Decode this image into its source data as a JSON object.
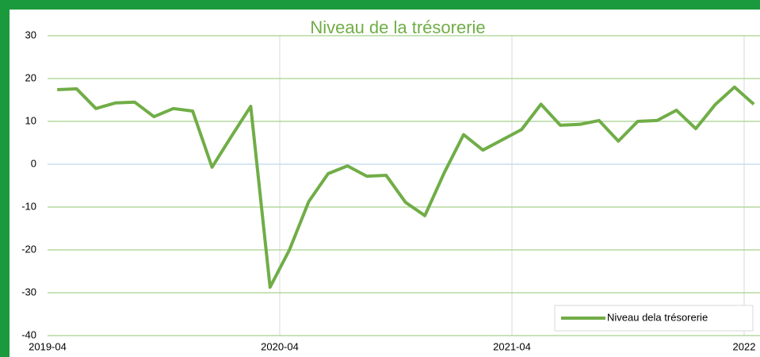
{
  "chart_data": {
    "type": "line",
    "title": "Niveau de la trésorerie",
    "categories": [
      "2019-04",
      null,
      null,
      null,
      null,
      null,
      null,
      null,
      null,
      null,
      null,
      null,
      "2020-04",
      null,
      null,
      null,
      null,
      null,
      null,
      null,
      null,
      null,
      null,
      null,
      "2021-04",
      null,
      null,
      null,
      null,
      null,
      null,
      null,
      null,
      null,
      null,
      null,
      "2022"
    ],
    "series": [
      {
        "name": "Niveau dela trésorerie",
        "color": "#70ad47",
        "values": [
          17.4,
          17.6,
          13,
          14.3,
          14.5,
          11.1,
          13,
          12.4,
          -0.7,
          6.5,
          13.5,
          -28.7,
          -20,
          -8.7,
          -2.2,
          -0.4,
          -2.8,
          -2.6,
          -8.9,
          -12,
          -2,
          6.9,
          3.3,
          5.7,
          8.1,
          14,
          9.1,
          9.3,
          10.2,
          5.4,
          10,
          10.2,
          12.6,
          8.3,
          13.9,
          18,
          14
        ]
      }
    ],
    "ylim": [
      -40,
      30
    ],
    "yticks": [
      -40,
      -30,
      -20,
      -10,
      0,
      10,
      20,
      30
    ],
    "grid": true,
    "legend": "bottom-right"
  }
}
